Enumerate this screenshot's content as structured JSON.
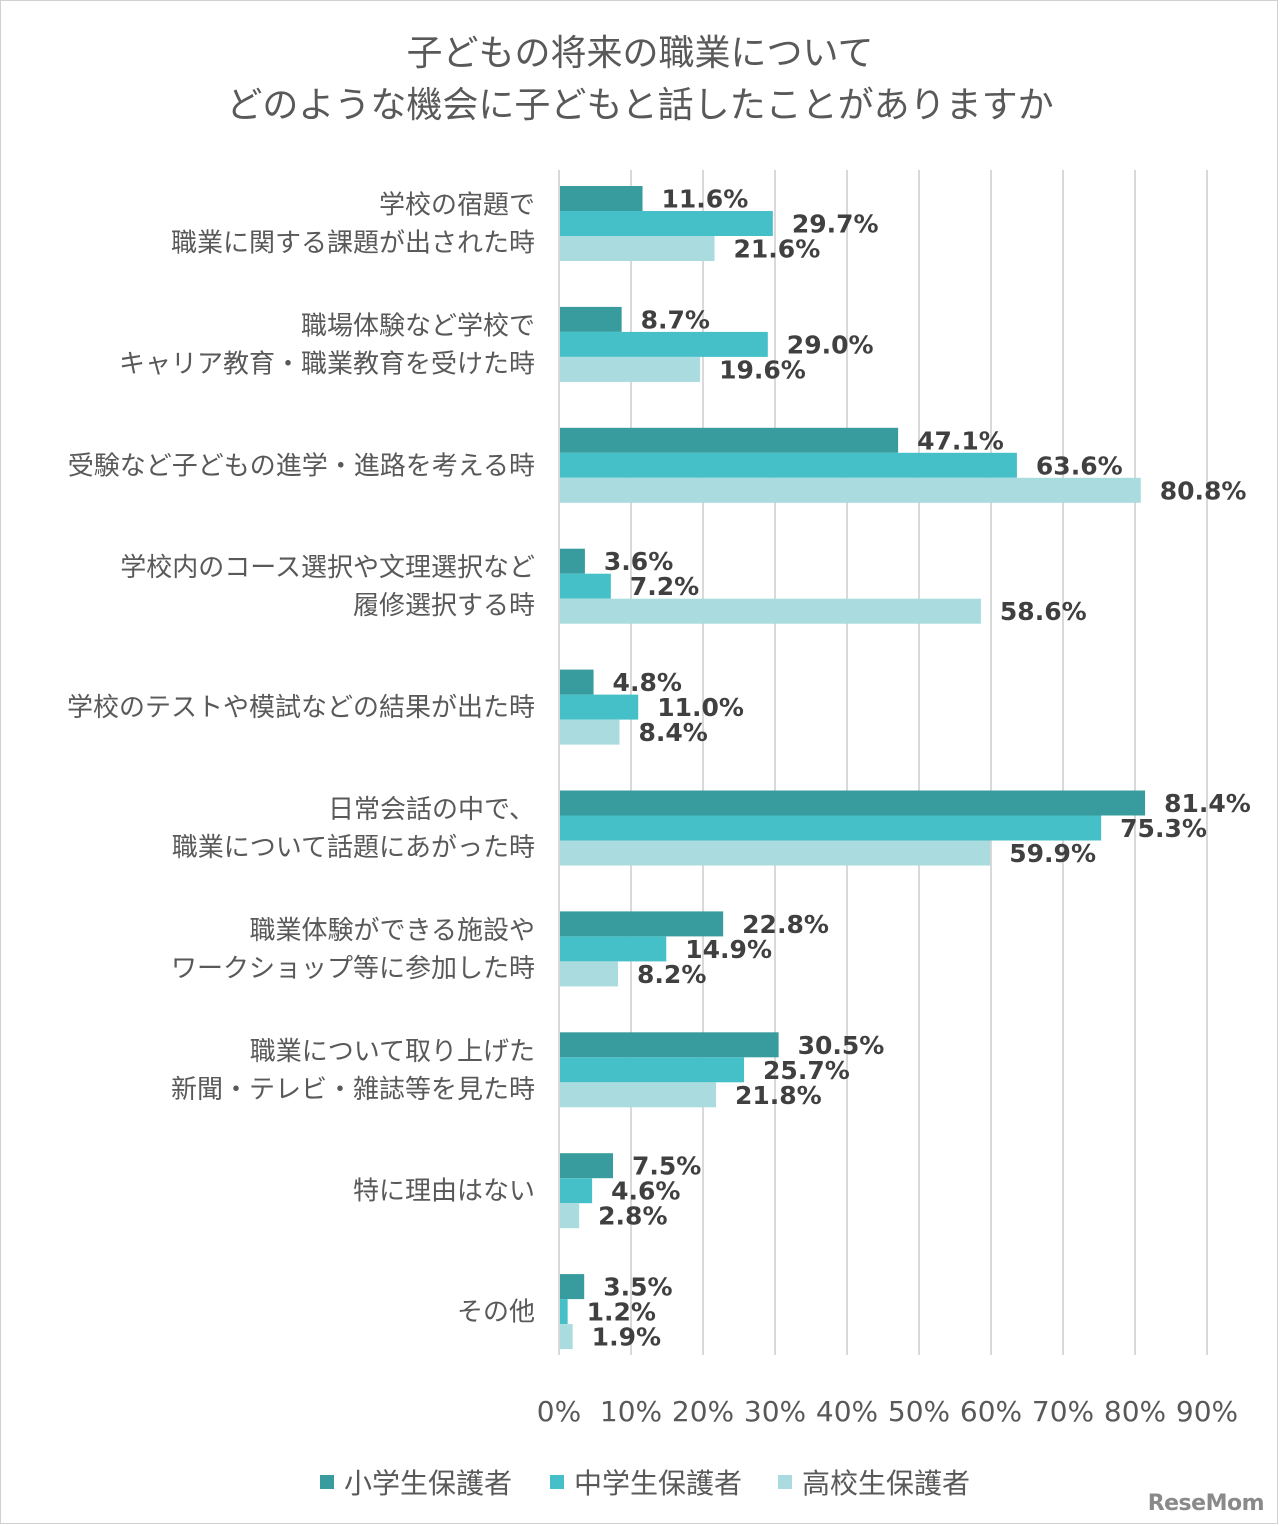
{
  "title_lines": [
    "子どもの将来の職業について",
    "どのような機会に子どもと話したことがありますか"
  ],
  "logo_text": "ReseMom",
  "colors": {
    "elementary": "#389C9E",
    "junior_high": "#46C0C8",
    "high_school": "#A9DBDF",
    "grid": "#D9D9D9",
    "text": "#595959",
    "label": "#404040"
  },
  "chart_data": {
    "type": "bar",
    "orientation": "horizontal",
    "title": "子どもの将来の職業について どのような機会に子どもと話したことがありますか",
    "categories": [
      [
        "学校の宿題で",
        "職業に関する課題が出された時"
      ],
      [
        "職場体験など学校で",
        "キャリア教育・職業教育を受けた時"
      ],
      [
        "受験など子どもの進学・進路を考える時"
      ],
      [
        "学校内のコース選択や文理選択など",
        "履修選択する時"
      ],
      [
        "学校のテストや模試などの結果が出た時"
      ],
      [
        "日常会話の中で、",
        "職業について話題にあがった時"
      ],
      [
        "職業体験ができる施設や",
        "ワークショップ等に参加した時"
      ],
      [
        "職業について取り上げた",
        "新聞・テレビ・雑誌等を見た時"
      ],
      [
        "特に理由はない"
      ],
      [
        "その他"
      ]
    ],
    "series": [
      {
        "name": "小学生保護者",
        "color_key": "elementary",
        "values": [
          11.6,
          8.7,
          47.1,
          3.6,
          4.8,
          81.4,
          22.8,
          30.5,
          7.5,
          3.5
        ],
        "labels": [
          "11.6%",
          "8.7%",
          "47.1%",
          "3.6%",
          "4.8%",
          "81.4%",
          "22.8%",
          "30.5%",
          "7.5%",
          "3.5%"
        ]
      },
      {
        "name": "中学生保護者",
        "color_key": "junior_high",
        "values": [
          29.7,
          29.0,
          63.6,
          7.2,
          11.0,
          75.3,
          14.9,
          25.7,
          4.6,
          1.2
        ],
        "labels": [
          "29.7%",
          "29.0%",
          "63.6%",
          "7.2%",
          "11.0%",
          "75.3%",
          "14.9%",
          "25.7%",
          "4.6%",
          "1.2%"
        ]
      },
      {
        "name": "高校生保護者",
        "color_key": "high_school",
        "values": [
          21.6,
          19.6,
          80.8,
          58.6,
          8.4,
          59.9,
          8.2,
          21.8,
          2.8,
          1.9
        ],
        "labels": [
          "21.6%",
          "19.6%",
          "80.8%",
          "58.6%",
          "8.4%",
          "59.9%",
          "8.2%",
          "21.8%",
          "2.8%",
          "1.9%"
        ]
      }
    ],
    "xlim": [
      0,
      90
    ],
    "x_ticks": [
      "0%",
      "10%",
      "20%",
      "30%",
      "40%",
      "50%",
      "60%",
      "70%",
      "80%",
      "90%"
    ],
    "grid": "vertical",
    "legend_position": "bottom"
  }
}
